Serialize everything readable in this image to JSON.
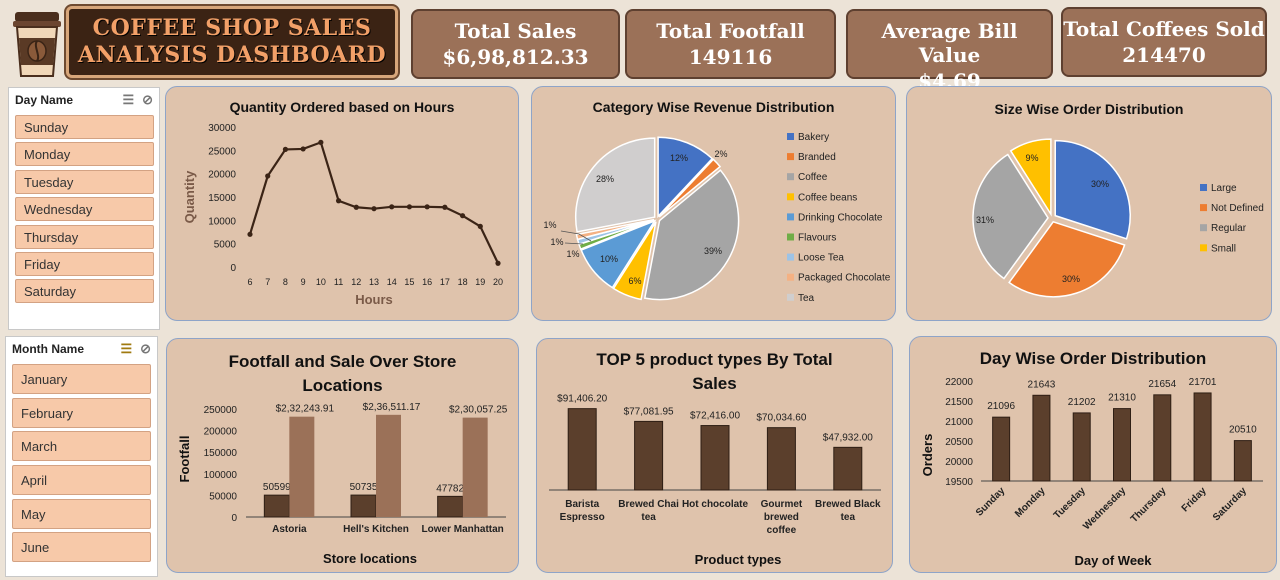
{
  "header": {
    "title_line1": "COFFEE SHOP SALES",
    "title_line2": "ANALYSIS DASHBOARD"
  },
  "kpis": [
    {
      "label": "Total Sales",
      "value": "$6,98,812.33"
    },
    {
      "label": "Total Footfall",
      "value": "149116"
    },
    {
      "label": "Average Bill Value",
      "value": "$4.69"
    },
    {
      "label": "Total Coffees Sold",
      "value": "214470"
    }
  ],
  "slicers": {
    "day": {
      "title": "Day Name",
      "items": [
        "Sunday",
        "Monday",
        "Tuesday",
        "Wednesday",
        "Thursday",
        "Friday",
        "Saturday"
      ]
    },
    "month": {
      "title": "Month Name",
      "items": [
        "January",
        "February",
        "March",
        "April",
        "May",
        "June"
      ]
    }
  },
  "colors": {
    "brown_dark": "#5b3f2c",
    "brown_light": "#9b7158",
    "panel": "#dfc3ac"
  },
  "chart_data": [
    {
      "type": "line",
      "title": "Quantity Ordered based on Hours",
      "xlabel": "Hours",
      "ylabel": "Quantity",
      "x": [
        6,
        7,
        8,
        9,
        10,
        11,
        12,
        13,
        14,
        15,
        16,
        17,
        18,
        19,
        20
      ],
      "values": [
        7000,
        19500,
        25200,
        25300,
        26700,
        14200,
        12800,
        12500,
        12900,
        12900,
        12900,
        12800,
        11000,
        8700,
        800
      ],
      "yticks": [
        0,
        5000,
        10000,
        15000,
        20000,
        25000,
        30000
      ],
      "ylim": [
        0,
        30000
      ]
    },
    {
      "type": "pie",
      "title": "Category Wise Revenue Distribution",
      "slices": [
        {
          "name": "Bakery",
          "value": 12,
          "label": "12%",
          "color": "#4472c4"
        },
        {
          "name": "Branded",
          "value": 2,
          "label": "2%",
          "color": "#ed7d31"
        },
        {
          "name": "Coffee",
          "value": 39,
          "label": "39%",
          "color": "#a5a5a5"
        },
        {
          "name": "Coffee beans",
          "value": 6,
          "label": "6%",
          "color": "#ffc000"
        },
        {
          "name": "Drinking Chocolate",
          "value": 10,
          "label": "10%",
          "color": "#5b9bd5"
        },
        {
          "name": "Flavours",
          "value": 1,
          "label": "1%",
          "color": "#70ad47"
        },
        {
          "name": "Loose Tea",
          "value": 1,
          "label": "1%",
          "color": "#9dc3e6"
        },
        {
          "name": "Packaged Chocolate",
          "value": 1,
          "label": "1%",
          "color": "#f4b183"
        },
        {
          "name": "Tea",
          "value": 28,
          "label": "28%",
          "color": "#d0cece"
        }
      ]
    },
    {
      "type": "pie",
      "title": "Size Wise Order Distribution",
      "slices": [
        {
          "name": "Large",
          "value": 30,
          "label": "30%",
          "color": "#4472c4"
        },
        {
          "name": "Not Defined",
          "value": 30,
          "label": "30%",
          "color": "#ed7d31"
        },
        {
          "name": "Regular",
          "value": 31,
          "label": "31%",
          "color": "#a5a5a5"
        },
        {
          "name": "Small",
          "value": 9,
          "label": "9%",
          "color": "#ffc000"
        }
      ]
    },
    {
      "type": "bar",
      "title_line1": "Footfall and Sale Over Store",
      "title_line2": "Locations",
      "xlabel": "Store locations",
      "ylabel": "Footfall",
      "categories": [
        "Astoria",
        "Hell's Kitchen",
        "Lower Manhattan"
      ],
      "series": [
        {
          "values": [
            50599,
            50735,
            47782
          ],
          "labels": [
            "50599",
            "50735",
            "47782"
          ],
          "color": "#5b3f2c"
        },
        {
          "values": [
            232243.91,
            236511.17,
            230057.25
          ],
          "labels": [
            "$2,32,243.91",
            "$2,36,511.17",
            "$2,30,057.25"
          ],
          "color": "#9b7158"
        }
      ],
      "yticks": [
        0,
        50000,
        100000,
        150000,
        200000,
        250000
      ],
      "ylim": [
        0,
        250000
      ]
    },
    {
      "type": "bar",
      "title_line1": "TOP 5 product types By Total",
      "title_line2": "Sales",
      "xlabel": "Product types",
      "categories": [
        [
          "Barista",
          "Espresso"
        ],
        [
          "Brewed Chai",
          "tea"
        ],
        [
          "Hot chocolate"
        ],
        [
          "Gourmet",
          "brewed",
          "coffee"
        ],
        [
          "Brewed Black",
          "tea"
        ]
      ],
      "values": [
        91406.2,
        77081.95,
        72416.0,
        70034.6,
        47932.0
      ],
      "labels": [
        "$91,406.20",
        "$77,081.95",
        "$72,416.00",
        "$70,034.60",
        "$47,932.00"
      ],
      "ylim": [
        0,
        100000
      ]
    },
    {
      "type": "bar",
      "title": "Day Wise Order Distribution",
      "xlabel": "Day of Week",
      "ylabel": "Orders",
      "categories": [
        "Sunday",
        "Monday",
        "Tuesday",
        "Wednesday",
        "Thursday",
        "Friday",
        "Saturday"
      ],
      "values": [
        21096,
        21643,
        21202,
        21310,
        21654,
        21701,
        20510
      ],
      "yticks": [
        19500,
        20000,
        20500,
        21000,
        21500,
        22000
      ],
      "ylim": [
        19500,
        22000
      ]
    }
  ]
}
